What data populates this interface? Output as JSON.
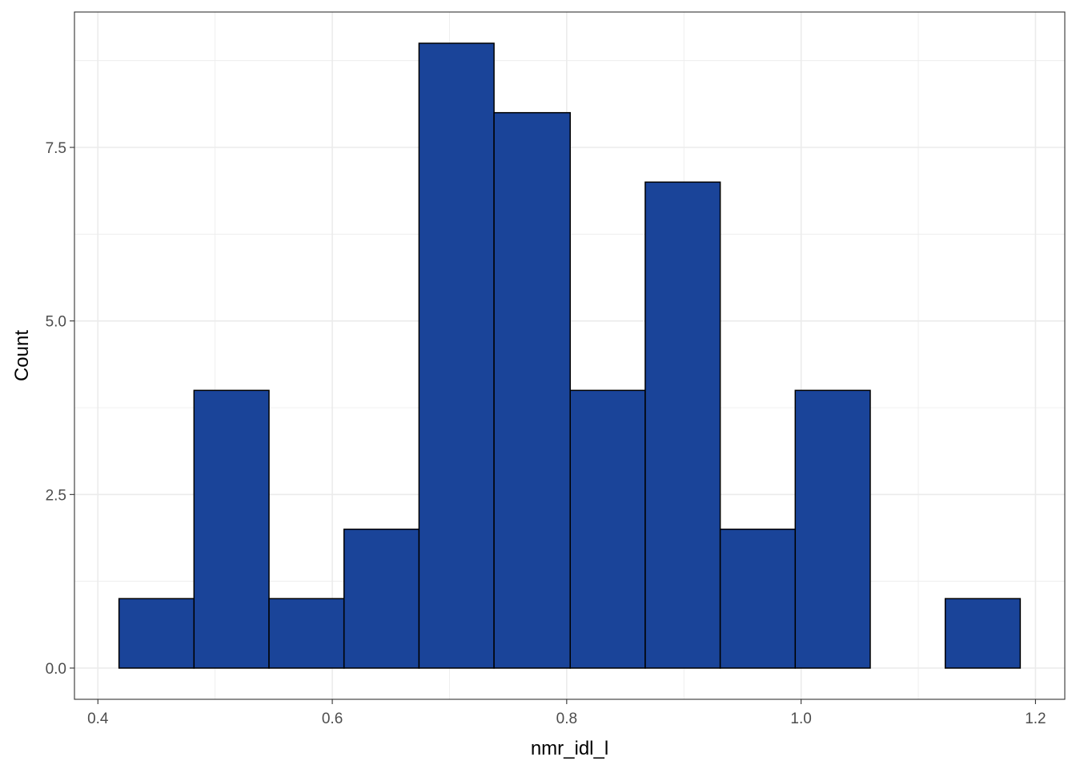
{
  "chart_data": {
    "type": "bar",
    "subtype": "histogram",
    "title": "",
    "xlabel": "nmr_idl_l",
    "ylabel": "Count",
    "bins": [
      {
        "x0": 0.418,
        "x1": 0.482,
        "count": 1
      },
      {
        "x0": 0.482,
        "x1": 0.546,
        "count": 4
      },
      {
        "x0": 0.546,
        "x1": 0.61,
        "count": 1
      },
      {
        "x0": 0.61,
        "x1": 0.674,
        "count": 2
      },
      {
        "x0": 0.674,
        "x1": 0.738,
        "count": 9
      },
      {
        "x0": 0.738,
        "x1": 0.803,
        "count": 8
      },
      {
        "x0": 0.803,
        "x1": 0.867,
        "count": 4
      },
      {
        "x0": 0.867,
        "x1": 0.931,
        "count": 7
      },
      {
        "x0": 0.931,
        "x1": 0.995,
        "count": 2
      },
      {
        "x0": 0.995,
        "x1": 1.059,
        "count": 4
      },
      {
        "x0": 1.059,
        "x1": 1.123,
        "count": 0
      },
      {
        "x0": 1.123,
        "x1": 1.187,
        "count": 1
      }
    ],
    "xlim": [
      0.38,
      1.225
    ],
    "ylim": [
      -0.45,
      9.45
    ],
    "x_ticks": [
      0.4,
      0.6,
      0.8,
      1.0,
      1.2
    ],
    "x_tick_labels": [
      "0.4",
      "0.6",
      "0.8",
      "1.0",
      "1.2"
    ],
    "x_minor_ticks": [
      0.5,
      0.7,
      0.9,
      1.1
    ],
    "y_ticks": [
      0.0,
      2.5,
      5.0,
      7.5
    ],
    "y_tick_labels": [
      "0.0",
      "2.5",
      "5.0",
      "7.5"
    ],
    "y_minor_ticks": [
      1.25,
      3.75,
      6.25,
      8.75
    ],
    "grid": true,
    "legend": "none",
    "colors": {
      "bar_fill": "#1a4499",
      "bar_outline": "#000000",
      "grid": "#ebebeb",
      "panel_border": "#333333",
      "tick_label": "#4d4d4d"
    }
  }
}
